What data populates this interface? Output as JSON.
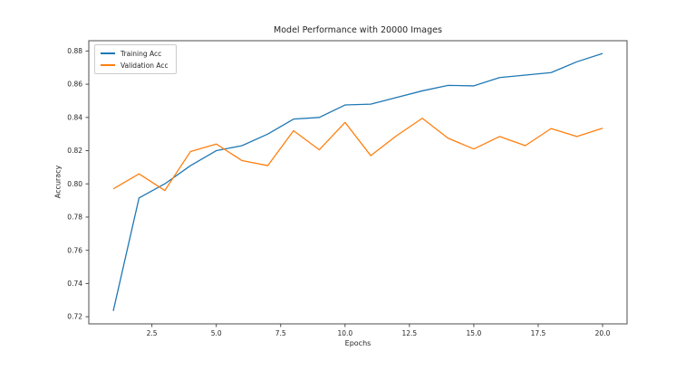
{
  "figure": {
    "background": "#ffffff"
  },
  "colors": {
    "axis": "#4d4d4d",
    "text": "#262626",
    "legend_border": "#cccccc"
  },
  "chart_data": {
    "type": "line",
    "title": "Model Performance with 20000 Images",
    "xlabel": "Epochs",
    "ylabel": "Accuracy",
    "x": [
      1,
      2,
      3,
      4,
      5,
      6,
      7,
      8,
      9,
      10,
      11,
      12,
      13,
      14,
      15,
      16,
      17,
      18,
      19,
      20
    ],
    "series": [
      {
        "name": "Training Acc",
        "color": "#1f77b4",
        "values": [
          0.7235,
          0.7915,
          0.8,
          0.811,
          0.82,
          0.823,
          0.83,
          0.839,
          0.84,
          0.8475,
          0.848,
          0.852,
          0.856,
          0.8593,
          0.859,
          0.864,
          0.8655,
          0.867,
          0.8735,
          0.8785
        ]
      },
      {
        "name": "Validation Acc",
        "color": "#ff7f0e",
        "values": [
          0.797,
          0.806,
          0.796,
          0.8195,
          0.824,
          0.814,
          0.811,
          0.832,
          0.8205,
          0.837,
          0.817,
          0.829,
          0.8395,
          0.8275,
          0.821,
          0.8285,
          0.823,
          0.8333,
          0.8285,
          0.8335
        ]
      }
    ],
    "xlim": [
      0.05,
      20.95
    ],
    "ylim": [
      0.7157,
      0.8862
    ],
    "x_ticks": [
      {
        "value": 2.5,
        "label": "2.5"
      },
      {
        "value": 5.0,
        "label": "5.0"
      },
      {
        "value": 7.5,
        "label": "7.5"
      },
      {
        "value": 10.0,
        "label": "10.0"
      },
      {
        "value": 12.5,
        "label": "12.5"
      },
      {
        "value": 15.0,
        "label": "15.0"
      },
      {
        "value": 17.5,
        "label": "17.5"
      },
      {
        "value": 20.0,
        "label": "20.0"
      }
    ],
    "y_ticks": [
      {
        "value": 0.72,
        "label": "0.72"
      },
      {
        "value": 0.74,
        "label": "0.74"
      },
      {
        "value": 0.76,
        "label": "0.76"
      },
      {
        "value": 0.78,
        "label": "0.78"
      },
      {
        "value": 0.8,
        "label": "0.80"
      },
      {
        "value": 0.82,
        "label": "0.82"
      },
      {
        "value": 0.84,
        "label": "0.84"
      },
      {
        "value": 0.86,
        "label": "0.86"
      },
      {
        "value": 0.88,
        "label": "0.88"
      }
    ],
    "grid": false,
    "legend_position": "upper left"
  }
}
